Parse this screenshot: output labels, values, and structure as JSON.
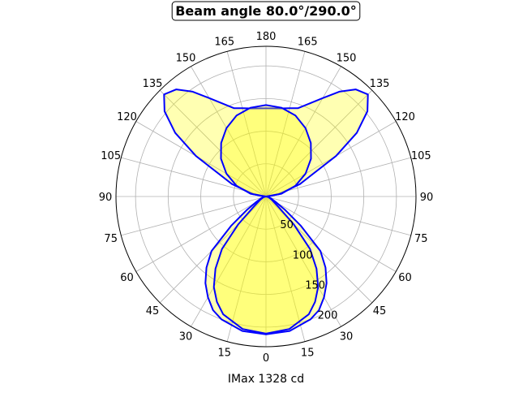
{
  "chart_data": {
    "type": "polar",
    "title": "Beam angle 80.0°/290.0°",
    "xlabel": "IMax 1328 cd",
    "rlim": [
      0,
      230
    ],
    "r_ticks": [
      "50",
      "100",
      "150",
      "200"
    ],
    "r_tick_values": [
      50,
      100,
      150,
      200
    ],
    "theta_ticks_deg": [
      0,
      15,
      30,
      45,
      60,
      75,
      90,
      105,
      120,
      135,
      150,
      165,
      180
    ],
    "theta_zero": "bottom",
    "symmetric": true,
    "grid": true,
    "fill_color": "#ffff00",
    "line_color": "#0000ff",
    "series": [
      {
        "theta": [
          0,
          10,
          20,
          25,
          30,
          35,
          40,
          45,
          50,
          55,
          60,
          70,
          80,
          90,
          100,
          110,
          120,
          125,
          130,
          135,
          140,
          145,
          150,
          160,
          165,
          170,
          180
        ],
        "r": [
          211,
          209,
          200,
          192,
          178,
          162,
          142,
          118,
          70,
          35,
          18,
          8,
          4,
          2,
          20,
          55,
          124,
          170,
          203,
          221,
          214,
          196,
          174,
          144,
          140,
          137,
          135
        ]
      },
      {
        "theta": [
          0,
          10,
          20,
          25,
          30,
          35,
          40,
          45,
          50,
          60,
          75,
          90,
          100,
          110,
          120,
          130,
          140,
          150,
          160,
          170,
          180
        ],
        "r": [
          210,
          206,
          192,
          178,
          160,
          135,
          105,
          60,
          25,
          10,
          4,
          0,
          24,
          48,
          70,
          90,
          107,
          121,
          132,
          138,
          140
        ]
      }
    ]
  }
}
